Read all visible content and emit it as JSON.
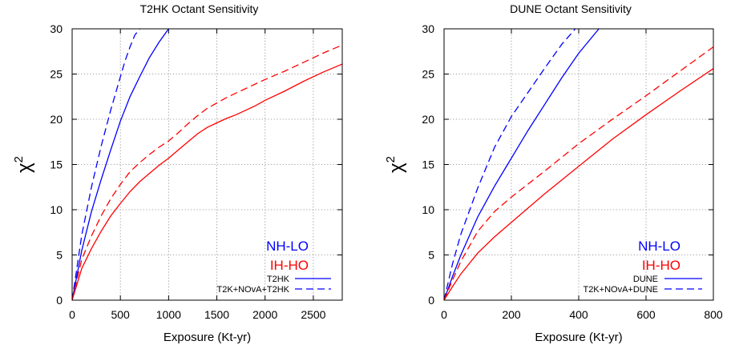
{
  "chart_data": [
    {
      "type": "line",
      "title": "T2HK Octant Sensitivity",
      "xlabel": "Exposure (Kt-yr)",
      "ylabel": "χ",
      "ylabel_sup": "2",
      "xlim": [
        0,
        2800
      ],
      "ylim": [
        0,
        30
      ],
      "xticks": [
        0,
        500,
        1000,
        1500,
        2000,
        2500
      ],
      "yticks": [
        0,
        5,
        10,
        15,
        20,
        25,
        30
      ],
      "grid": true,
      "legend_position": "bottom-right",
      "annotations": [
        {
          "text": "NH-LO",
          "color": "#0000ff"
        },
        {
          "text": "IH-HO",
          "color": "#ff0000"
        }
      ],
      "legend": [
        {
          "label": "T2HK",
          "style": "solid"
        },
        {
          "label": "T2K+NOvA+T2HK",
          "style": "dashed"
        }
      ],
      "series": [
        {
          "color": "#0000ff",
          "style": "solid",
          "x": [
            0,
            100,
            200,
            300,
            400,
            500,
            600,
            700,
            800,
            900,
            1000
          ],
          "y": [
            0,
            5.5,
            9.8,
            13.3,
            16.6,
            19.8,
            22.5,
            24.7,
            26.8,
            28.5,
            30
          ]
        },
        {
          "color": "#0000ff",
          "style": "dashed",
          "x": [
            0,
            100,
            200,
            300,
            400,
            500,
            550,
            600,
            650,
            700
          ],
          "y": [
            0,
            7.2,
            12.5,
            17.0,
            21.0,
            24.7,
            26.5,
            28.0,
            29.3,
            30
          ]
        },
        {
          "color": "#ff0000",
          "style": "solid",
          "x": [
            0,
            100,
            200,
            300,
            400,
            500,
            600,
            700,
            800,
            900,
            1000,
            1100,
            1200,
            1300,
            1400,
            1500,
            1600,
            1700,
            1800,
            1900,
            2000,
            2200,
            2400,
            2600,
            2800
          ],
          "y": [
            0,
            3.5,
            5.7,
            7.6,
            9.3,
            10.7,
            12.0,
            13.1,
            14.0,
            14.9,
            15.7,
            16.6,
            17.5,
            18.4,
            19.1,
            19.6,
            20.1,
            20.5,
            21.0,
            21.5,
            22.1,
            23.1,
            24.2,
            25.2,
            26.1
          ]
        },
        {
          "color": "#ff0000",
          "style": "dashed",
          "x": [
            0,
            100,
            200,
            300,
            400,
            500,
            600,
            700,
            800,
            900,
            1000,
            1100,
            1200,
            1300,
            1400,
            1500,
            1600,
            1700,
            1800,
            1900,
            2000,
            2200,
            2400,
            2600,
            2800
          ],
          "y": [
            0,
            4.5,
            7.1,
            9.3,
            11.2,
            12.8,
            14.2,
            15.2,
            16.1,
            16.9,
            17.6,
            18.5,
            19.5,
            20.4,
            21.2,
            21.8,
            22.4,
            22.9,
            23.4,
            23.9,
            24.4,
            25.3,
            26.3,
            27.3,
            28.2
          ]
        }
      ]
    },
    {
      "type": "line",
      "title": "DUNE Octant Sensitivity",
      "xlabel": "Exposure (Kt-yr)",
      "ylabel": "χ",
      "ylabel_sup": "2",
      "xlim": [
        0,
        800
      ],
      "ylim": [
        0,
        30
      ],
      "xticks": [
        0,
        200,
        400,
        600,
        800
      ],
      "yticks": [
        0,
        5,
        10,
        15,
        20,
        25,
        30
      ],
      "grid": true,
      "legend_position": "bottom-right",
      "annotations": [
        {
          "text": "NH-LO",
          "color": "#0000ff"
        },
        {
          "text": "IH-HO",
          "color": "#ff0000"
        }
      ],
      "legend": [
        {
          "label": "DUNE",
          "style": "solid"
        },
        {
          "label": "T2K+NOvA+DUNE",
          "style": "dashed"
        }
      ],
      "series": [
        {
          "color": "#0000ff",
          "style": "solid",
          "x": [
            0,
            25,
            50,
            100,
            150,
            200,
            250,
            300,
            350,
            400,
            460
          ],
          "y": [
            0,
            2.6,
            5.0,
            9.2,
            12.6,
            15.7,
            18.8,
            21.7,
            24.6,
            27.3,
            30
          ]
        },
        {
          "color": "#0000ff",
          "style": "dashed",
          "x": [
            0,
            25,
            50,
            100,
            150,
            200,
            250,
            300,
            350,
            390
          ],
          "y": [
            0,
            4.0,
            7.3,
            12.4,
            16.9,
            20.3,
            23.0,
            25.7,
            28.3,
            30
          ]
        },
        {
          "color": "#ff0000",
          "style": "solid",
          "x": [
            0,
            25,
            50,
            100,
            150,
            200,
            300,
            400,
            500,
            600,
            700,
            800
          ],
          "y": [
            0,
            1.5,
            2.9,
            5.2,
            7.0,
            8.6,
            11.8,
            14.8,
            17.8,
            20.5,
            23.1,
            25.6
          ]
        },
        {
          "color": "#ff0000",
          "style": "dashed",
          "x": [
            0,
            25,
            50,
            100,
            150,
            200,
            300,
            400,
            500,
            600,
            700,
            800
          ],
          "y": [
            0,
            2.2,
            4.3,
            7.6,
            9.8,
            11.4,
            14.3,
            17.3,
            20.0,
            22.6,
            25.3,
            28.0
          ]
        }
      ]
    }
  ]
}
